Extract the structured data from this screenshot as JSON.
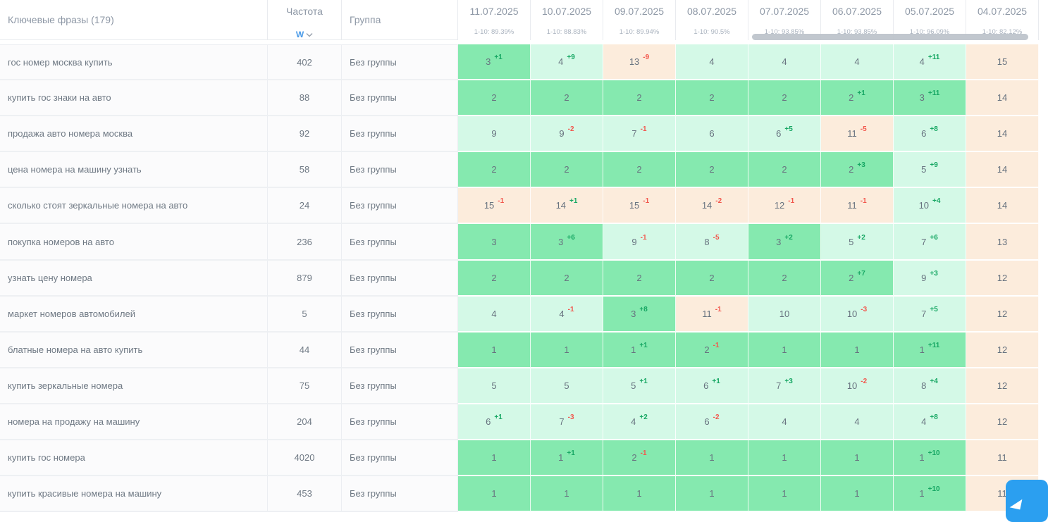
{
  "header": {
    "keywords_label": "Ключевые фразы (179)",
    "frequency_label": "Частота",
    "frequency_type": "W",
    "group_label": "Группа",
    "dates": [
      {
        "date": "11.07.2025",
        "top10": "1-10: 89.39%"
      },
      {
        "date": "10.07.2025",
        "top10": "1-10: 88.83%"
      },
      {
        "date": "09.07.2025",
        "top10": "1-10: 89.94%"
      },
      {
        "date": "08.07.2025",
        "top10": "1-10: 90.5%"
      },
      {
        "date": "07.07.2025",
        "top10": "1-10: 93.85%"
      },
      {
        "date": "06.07.2025",
        "top10": "1-10: 93.85%"
      },
      {
        "date": "05.07.2025",
        "top10": "1-10: 96.09%"
      },
      {
        "date": "04.07.2025",
        "top10": "1-10: 82.12%"
      }
    ]
  },
  "colors": {
    "position_top3": "#85e9af",
    "position_top10": "#d4f9e7",
    "position_over10": "#fcecdc",
    "delta_up": "#16a763",
    "delta_down": "#f2574d",
    "accent_blue": "#2b9ff0",
    "scrollbar_thumb": "#bcc2ca"
  },
  "rows": [
    {
      "phrase": "гос номер москва купить",
      "frequency": "402",
      "group": "Без группы",
      "positions": [
        {
          "v": "3",
          "d": "+1",
          "c": "good"
        },
        {
          "v": "4",
          "d": "+9",
          "c": "mid"
        },
        {
          "v": "13",
          "d": "-9",
          "c": "bad"
        },
        {
          "v": "4",
          "d": "",
          "c": "mid"
        },
        {
          "v": "4",
          "d": "",
          "c": "mid"
        },
        {
          "v": "4",
          "d": "",
          "c": "mid"
        },
        {
          "v": "4",
          "d": "+11",
          "c": "mid"
        },
        {
          "v": "15",
          "d": "",
          "c": "bad"
        }
      ]
    },
    {
      "phrase": "купить гос знаки на авто",
      "frequency": "88",
      "group": "Без группы",
      "positions": [
        {
          "v": "2",
          "d": "",
          "c": "good"
        },
        {
          "v": "2",
          "d": "",
          "c": "good"
        },
        {
          "v": "2",
          "d": "",
          "c": "good"
        },
        {
          "v": "2",
          "d": "",
          "c": "good"
        },
        {
          "v": "2",
          "d": "",
          "c": "good"
        },
        {
          "v": "2",
          "d": "+1",
          "c": "good"
        },
        {
          "v": "3",
          "d": "+11",
          "c": "good"
        },
        {
          "v": "14",
          "d": "",
          "c": "bad"
        }
      ]
    },
    {
      "phrase": "продажа авто номера москва",
      "frequency": "92",
      "group": "Без группы",
      "positions": [
        {
          "v": "9",
          "d": "",
          "c": "mid"
        },
        {
          "v": "9",
          "d": "-2",
          "c": "mid"
        },
        {
          "v": "7",
          "d": "-1",
          "c": "mid"
        },
        {
          "v": "6",
          "d": "",
          "c": "mid"
        },
        {
          "v": "6",
          "d": "+5",
          "c": "mid"
        },
        {
          "v": "11",
          "d": "-5",
          "c": "bad"
        },
        {
          "v": "6",
          "d": "+8",
          "c": "mid"
        },
        {
          "v": "14",
          "d": "",
          "c": "bad"
        }
      ]
    },
    {
      "phrase": "цена номера на машину узнать",
      "frequency": "58",
      "group": "Без группы",
      "positions": [
        {
          "v": "2",
          "d": "",
          "c": "good"
        },
        {
          "v": "2",
          "d": "",
          "c": "good"
        },
        {
          "v": "2",
          "d": "",
          "c": "good"
        },
        {
          "v": "2",
          "d": "",
          "c": "good"
        },
        {
          "v": "2",
          "d": "",
          "c": "good"
        },
        {
          "v": "2",
          "d": "+3",
          "c": "good"
        },
        {
          "v": "5",
          "d": "+9",
          "c": "mid"
        },
        {
          "v": "14",
          "d": "",
          "c": "bad"
        }
      ]
    },
    {
      "phrase": "сколько стоят зеркальные номера на авто",
      "frequency": "24",
      "group": "Без группы",
      "positions": [
        {
          "v": "15",
          "d": "-1",
          "c": "bad"
        },
        {
          "v": "14",
          "d": "+1",
          "c": "bad"
        },
        {
          "v": "15",
          "d": "-1",
          "c": "bad"
        },
        {
          "v": "14",
          "d": "-2",
          "c": "bad"
        },
        {
          "v": "12",
          "d": "-1",
          "c": "bad"
        },
        {
          "v": "11",
          "d": "-1",
          "c": "bad"
        },
        {
          "v": "10",
          "d": "+4",
          "c": "mid"
        },
        {
          "v": "14",
          "d": "",
          "c": "bad"
        }
      ]
    },
    {
      "phrase": "покупка номеров на авто",
      "frequency": "236",
      "group": "Без группы",
      "positions": [
        {
          "v": "3",
          "d": "",
          "c": "good"
        },
        {
          "v": "3",
          "d": "+6",
          "c": "good"
        },
        {
          "v": "9",
          "d": "-1",
          "c": "mid"
        },
        {
          "v": "8",
          "d": "-5",
          "c": "mid"
        },
        {
          "v": "3",
          "d": "+2",
          "c": "good"
        },
        {
          "v": "5",
          "d": "+2",
          "c": "mid"
        },
        {
          "v": "7",
          "d": "+6",
          "c": "mid"
        },
        {
          "v": "13",
          "d": "",
          "c": "bad"
        }
      ]
    },
    {
      "phrase": "узнать цену номера",
      "frequency": "879",
      "group": "Без группы",
      "positions": [
        {
          "v": "2",
          "d": "",
          "c": "good"
        },
        {
          "v": "2",
          "d": "",
          "c": "good"
        },
        {
          "v": "2",
          "d": "",
          "c": "good"
        },
        {
          "v": "2",
          "d": "",
          "c": "good"
        },
        {
          "v": "2",
          "d": "",
          "c": "good"
        },
        {
          "v": "2",
          "d": "+7",
          "c": "good"
        },
        {
          "v": "9",
          "d": "+3",
          "c": "mid"
        },
        {
          "v": "12",
          "d": "",
          "c": "bad"
        }
      ]
    },
    {
      "phrase": "маркет номеров автомобилей",
      "frequency": "5",
      "group": "Без группы",
      "positions": [
        {
          "v": "4",
          "d": "",
          "c": "mid"
        },
        {
          "v": "4",
          "d": "-1",
          "c": "mid"
        },
        {
          "v": "3",
          "d": "+8",
          "c": "good"
        },
        {
          "v": "11",
          "d": "-1",
          "c": "bad"
        },
        {
          "v": "10",
          "d": "",
          "c": "mid"
        },
        {
          "v": "10",
          "d": "-3",
          "c": "mid"
        },
        {
          "v": "7",
          "d": "+5",
          "c": "mid"
        },
        {
          "v": "12",
          "d": "",
          "c": "bad"
        }
      ]
    },
    {
      "phrase": "блатные номера на авто купить",
      "frequency": "44",
      "group": "Без группы",
      "positions": [
        {
          "v": "1",
          "d": "",
          "c": "good"
        },
        {
          "v": "1",
          "d": "",
          "c": "good"
        },
        {
          "v": "1",
          "d": "+1",
          "c": "good"
        },
        {
          "v": "2",
          "d": "-1",
          "c": "good"
        },
        {
          "v": "1",
          "d": "",
          "c": "good"
        },
        {
          "v": "1",
          "d": "",
          "c": "good"
        },
        {
          "v": "1",
          "d": "+11",
          "c": "good"
        },
        {
          "v": "12",
          "d": "",
          "c": "bad"
        }
      ]
    },
    {
      "phrase": "купить зеркальные номера",
      "frequency": "75",
      "group": "Без группы",
      "positions": [
        {
          "v": "5",
          "d": "",
          "c": "mid"
        },
        {
          "v": "5",
          "d": "",
          "c": "mid"
        },
        {
          "v": "5",
          "d": "+1",
          "c": "mid"
        },
        {
          "v": "6",
          "d": "+1",
          "c": "mid"
        },
        {
          "v": "7",
          "d": "+3",
          "c": "mid"
        },
        {
          "v": "10",
          "d": "-2",
          "c": "mid"
        },
        {
          "v": "8",
          "d": "+4",
          "c": "mid"
        },
        {
          "v": "12",
          "d": "",
          "c": "bad"
        }
      ]
    },
    {
      "phrase": "номера на продажу на машину",
      "frequency": "204",
      "group": "Без группы",
      "positions": [
        {
          "v": "6",
          "d": "+1",
          "c": "mid"
        },
        {
          "v": "7",
          "d": "-3",
          "c": "mid"
        },
        {
          "v": "4",
          "d": "+2",
          "c": "mid"
        },
        {
          "v": "6",
          "d": "-2",
          "c": "mid"
        },
        {
          "v": "4",
          "d": "",
          "c": "mid"
        },
        {
          "v": "4",
          "d": "",
          "c": "mid"
        },
        {
          "v": "4",
          "d": "+8",
          "c": "mid"
        },
        {
          "v": "12",
          "d": "",
          "c": "bad"
        }
      ]
    },
    {
      "phrase": "купить гос номера",
      "frequency": "4020",
      "group": "Без группы",
      "positions": [
        {
          "v": "1",
          "d": "",
          "c": "good"
        },
        {
          "v": "1",
          "d": "+1",
          "c": "good"
        },
        {
          "v": "2",
          "d": "-1",
          "c": "good"
        },
        {
          "v": "1",
          "d": "",
          "c": "good"
        },
        {
          "v": "1",
          "d": "",
          "c": "good"
        },
        {
          "v": "1",
          "d": "",
          "c": "good"
        },
        {
          "v": "1",
          "d": "+10",
          "c": "good"
        },
        {
          "v": "11",
          "d": "",
          "c": "bad"
        }
      ]
    },
    {
      "phrase": "купить красивые номера на машину",
      "frequency": "453",
      "group": "Без группы",
      "positions": [
        {
          "v": "1",
          "d": "",
          "c": "good"
        },
        {
          "v": "1",
          "d": "",
          "c": "good"
        },
        {
          "v": "1",
          "d": "",
          "c": "good"
        },
        {
          "v": "1",
          "d": "",
          "c": "good"
        },
        {
          "v": "1",
          "d": "",
          "c": "good"
        },
        {
          "v": "1",
          "d": "",
          "c": "good"
        },
        {
          "v": "1",
          "d": "+10",
          "c": "good"
        },
        {
          "v": "11",
          "d": "",
          "c": "bad"
        }
      ]
    }
  ]
}
